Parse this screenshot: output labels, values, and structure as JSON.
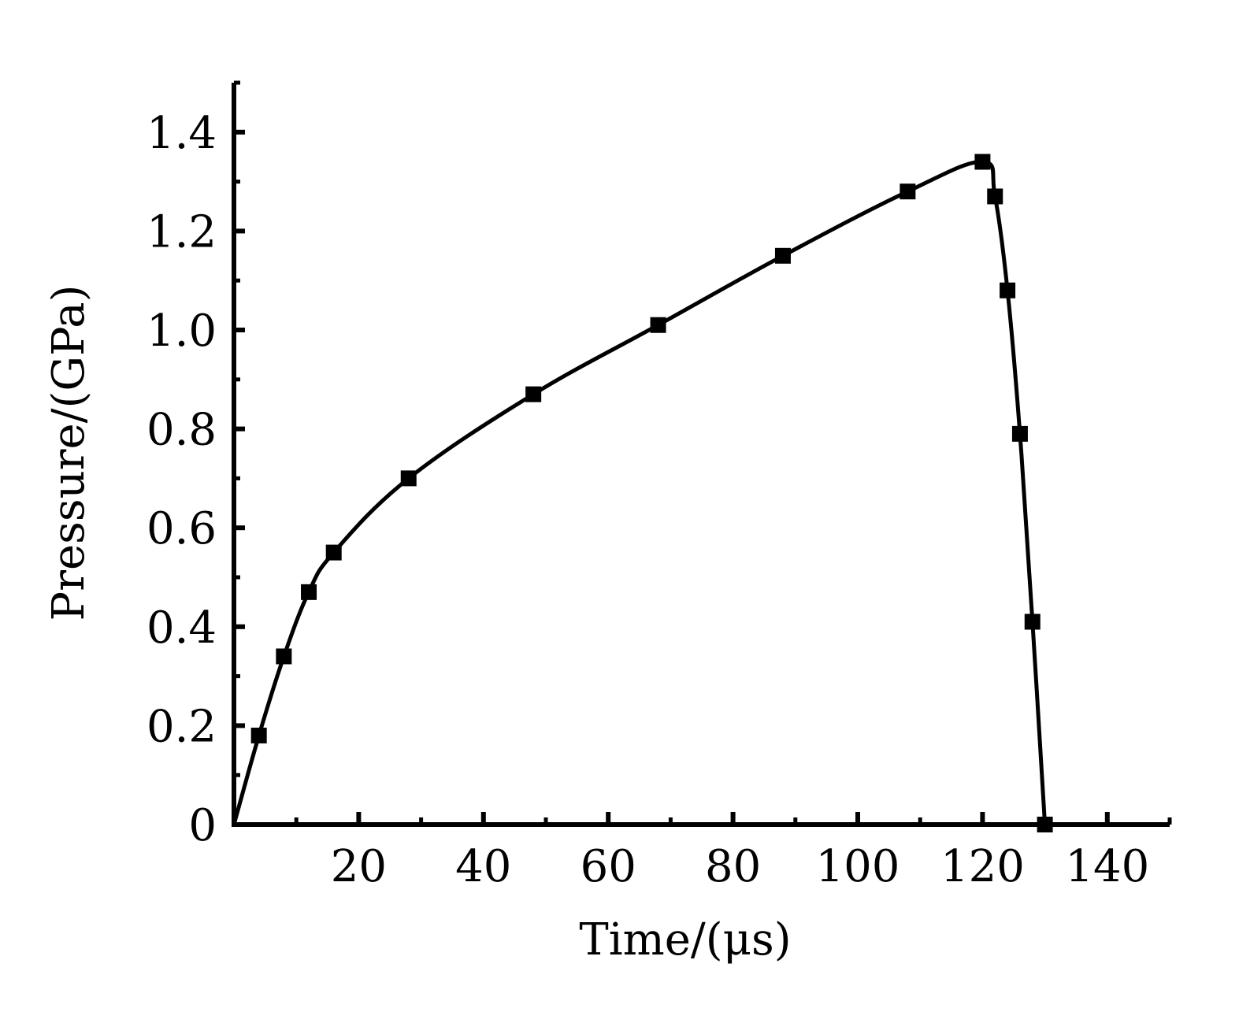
{
  "chart_data": {
    "type": "line",
    "xlabel": "Time/(μs)",
    "ylabel": "Pressure/(GPa)",
    "xlim": [
      0,
      150
    ],
    "ylim": [
      0,
      1.5
    ],
    "x_ticks": [
      20,
      40,
      60,
      80,
      100,
      120,
      140
    ],
    "x_tick_labels": [
      "20",
      "40",
      "60",
      "80",
      "100",
      "120",
      "140"
    ],
    "y_ticks": [
      0,
      0.2,
      0.4,
      0.6,
      0.8,
      1.0,
      1.2,
      1.4
    ],
    "y_tick_labels": [
      "0",
      "0.2",
      "0.4",
      "0.6",
      "0.8",
      "1.0",
      "1.2",
      "1.4"
    ],
    "grid": false,
    "series": [
      {
        "marker": "square",
        "color": "#000000",
        "x": [
          0,
          4,
          8,
          12,
          16,
          28,
          48,
          68,
          88,
          108,
          120,
          122,
          124,
          126,
          128,
          130
        ],
        "y": [
          0,
          0.18,
          0.34,
          0.47,
          0.55,
          0.7,
          0.87,
          1.01,
          1.15,
          1.28,
          1.34,
          1.27,
          1.08,
          0.79,
          0.41,
          0
        ],
        "marker_x": [
          4,
          8,
          12,
          16,
          28,
          48,
          68,
          88,
          108,
          120,
          122,
          124,
          126,
          128,
          130
        ],
        "marker_y": [
          0.18,
          0.34,
          0.47,
          0.55,
          0.7,
          0.87,
          1.01,
          1.15,
          1.28,
          1.34,
          1.27,
          1.08,
          0.79,
          0.41,
          0
        ]
      }
    ]
  }
}
